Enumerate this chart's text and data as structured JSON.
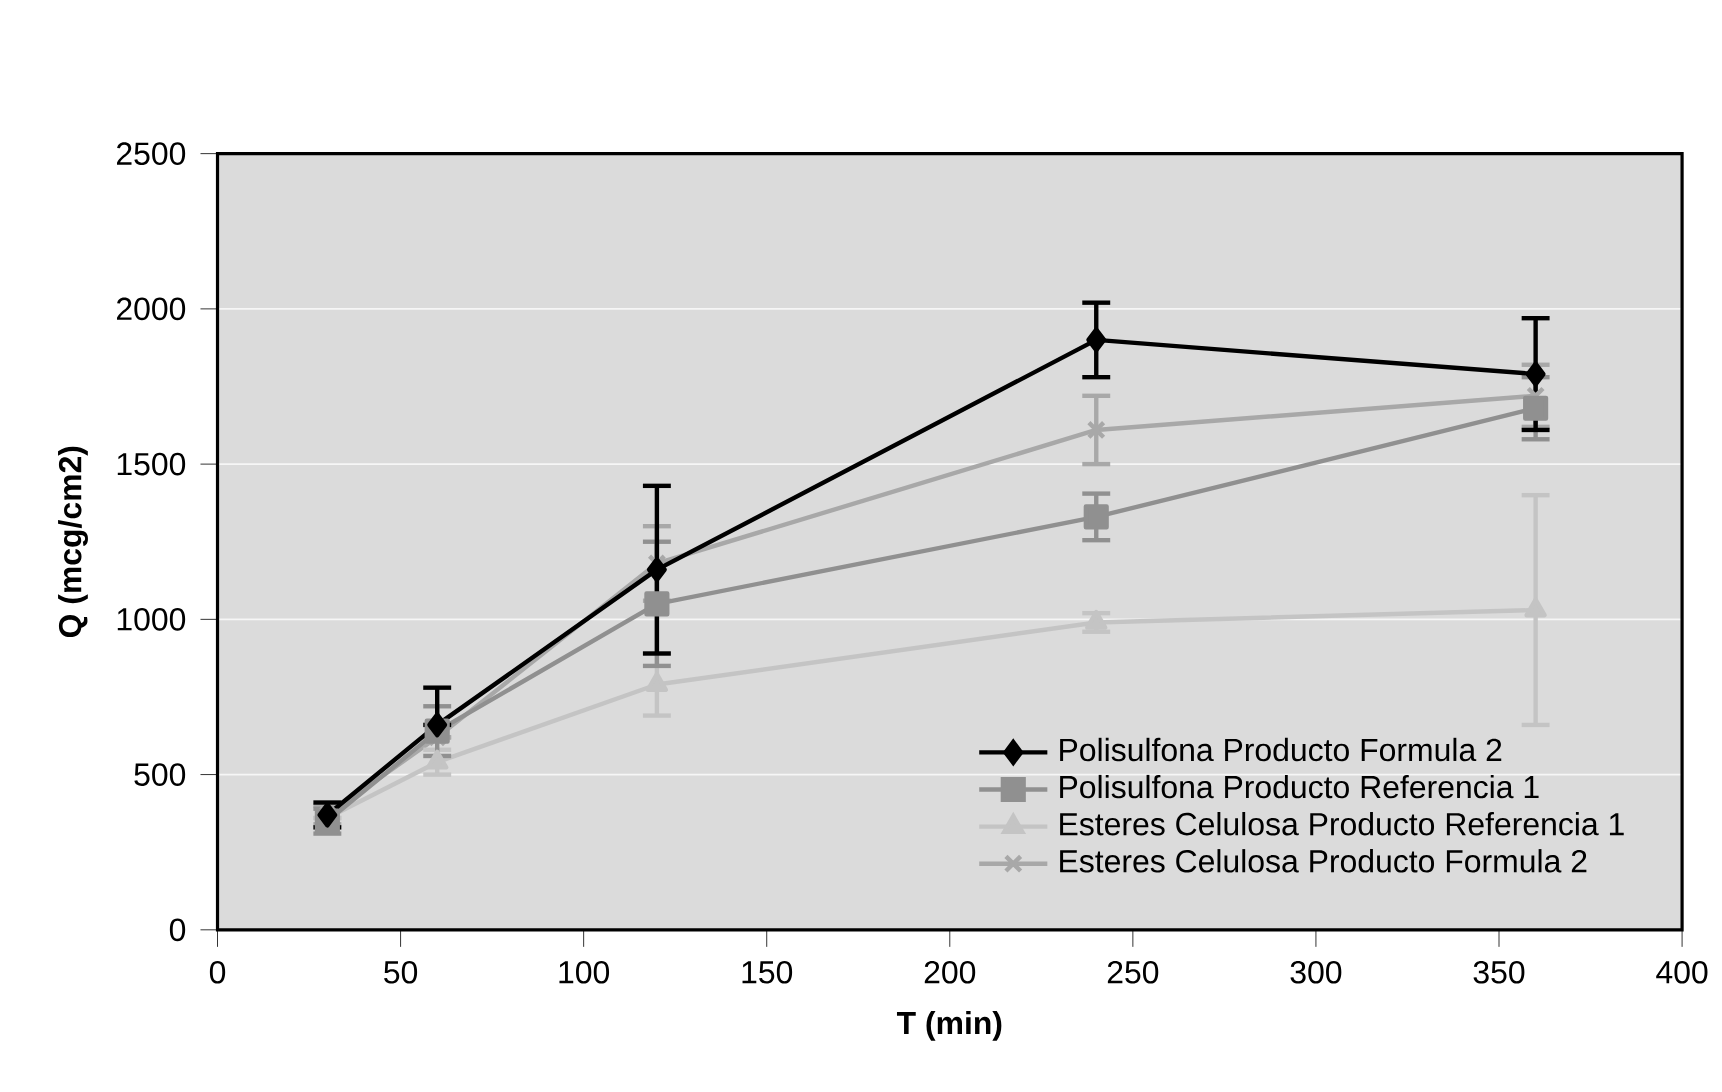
{
  "chart_data": {
    "type": "line",
    "xlabel": "T (min)",
    "ylabel": "Q (mcg/cm2)",
    "x": [
      30,
      60,
      120,
      240,
      360
    ],
    "series": [
      {
        "name": "Polisulfona Producto Formula 2",
        "color": "#000000",
        "marker": "diamond",
        "values": [
          370,
          660,
          1160,
          1900,
          1790
        ],
        "errors": [
          40,
          [
            660,
            780
          ],
          270,
          120,
          180
        ]
      },
      {
        "name": "Polisulfona Producto Referencia 1",
        "color": "#909090",
        "marker": "square",
        "values": [
          350,
          640,
          1050,
          1330,
          1680
        ],
        "errors": [
          40,
          80,
          200,
          75,
          100
        ]
      },
      {
        "name": "Esteres Celulosa Producto Referencia 1",
        "color": "#c4c4c4",
        "marker": "triangle",
        "values": [
          360,
          540,
          790,
          990,
          1030
        ],
        "errors": [
          null,
          40,
          100,
          30,
          370
        ]
      },
      {
        "name": "Esteres Celulosa Producto Formula 2",
        "color": "#a8a8a8",
        "marker": "cross",
        "values": [
          370,
          620,
          1180,
          1610,
          1720
        ],
        "errors": [
          30,
          null,
          120,
          110,
          100
        ]
      }
    ],
    "xlim": [
      0,
      400
    ],
    "xticks": [
      0,
      50,
      100,
      150,
      200,
      250,
      300,
      350,
      400
    ],
    "ylim": [
      0,
      2500
    ],
    "yticks": [
      0,
      500,
      1000,
      1500,
      2000,
      2500
    ],
    "grid": "y",
    "legend": "bottom right"
  }
}
